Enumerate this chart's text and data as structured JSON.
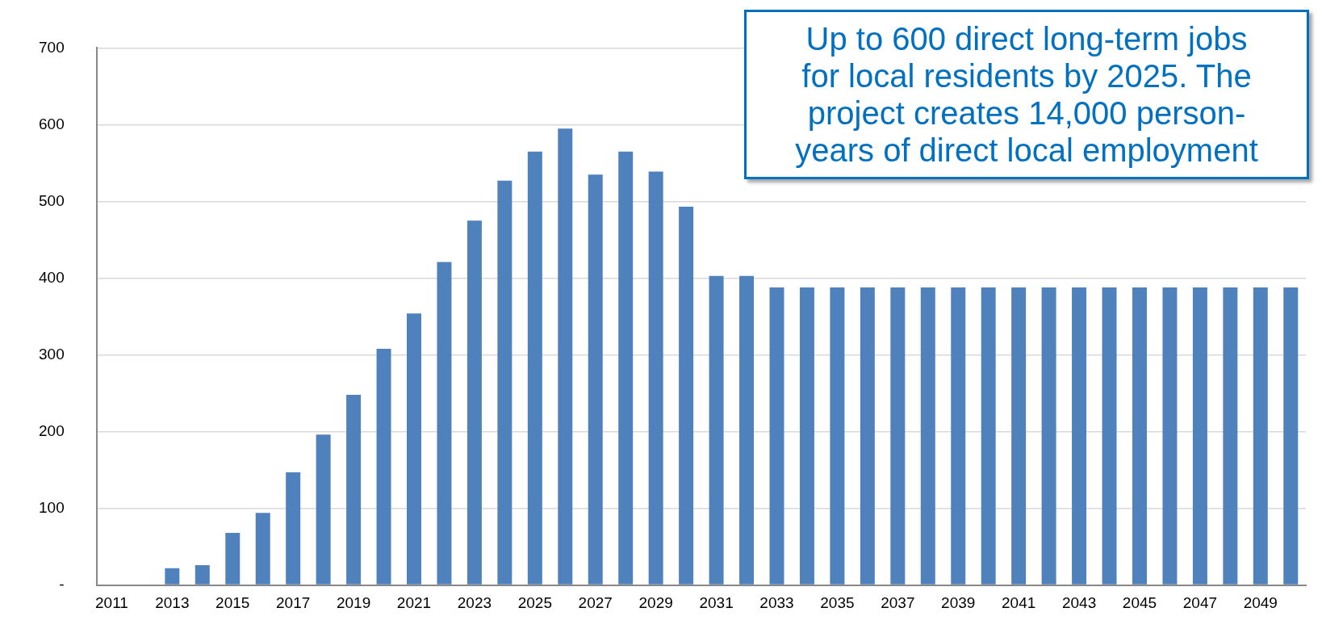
{
  "chart_data": {
    "type": "bar",
    "categories": [
      "2011",
      null,
      "2013",
      null,
      "2015",
      null,
      "2017",
      null,
      "2019",
      null,
      "2021",
      null,
      "2023",
      null,
      "2025",
      null,
      "2027",
      null,
      "2029",
      null,
      "2031",
      null,
      "2033",
      null,
      "2035",
      null,
      "2037",
      null,
      "2039",
      null,
      "2041",
      null,
      "2043",
      null,
      "2045",
      null,
      "2047",
      null,
      "2049",
      null
    ],
    "values": [
      0,
      0,
      22,
      26,
      68,
      94,
      147,
      196,
      248,
      308,
      354,
      421,
      475,
      527,
      565,
      595,
      535,
      565,
      539,
      493,
      403,
      403,
      388,
      388,
      388,
      388,
      388,
      388,
      388,
      388,
      388,
      388,
      388,
      388,
      388,
      388,
      388,
      388,
      388,
      388
    ],
    "color": "#4f81bd",
    "ylim": [
      0,
      700
    ],
    "yticks": [
      {
        "value": 0,
        "label": "-"
      },
      100,
      200,
      300,
      400,
      500,
      600,
      700
    ],
    "grid": "y",
    "legend": false,
    "annotations": [
      "Up to 600 direct long-term jobs for local residents by 2025. The project creates 14,000 person-years of direct local employment"
    ]
  }
}
